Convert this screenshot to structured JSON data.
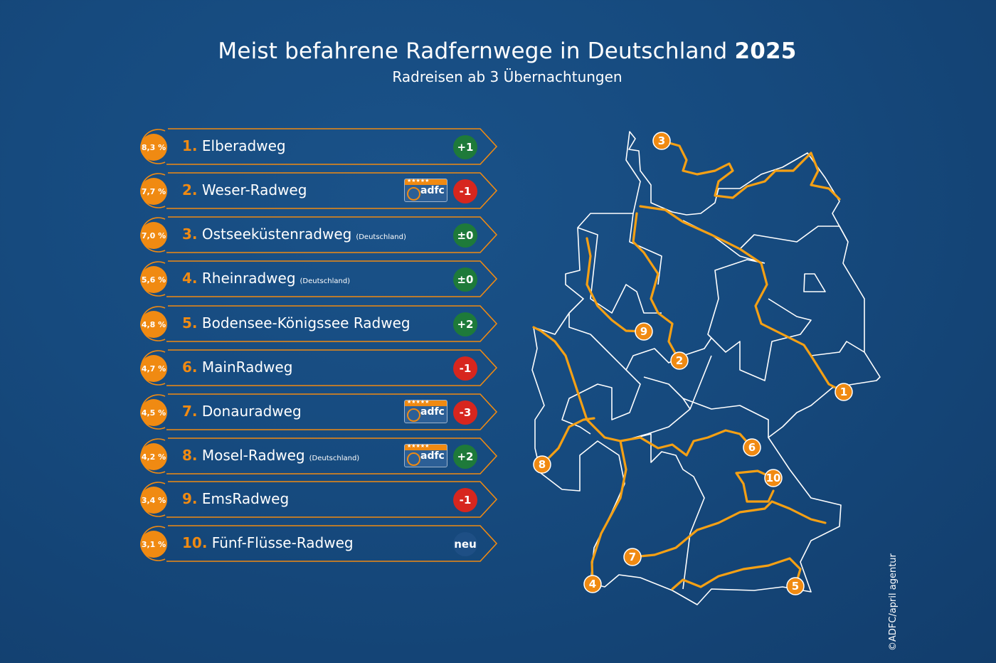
{
  "header": {
    "title": "Meist befahrene Radfernwege in Deutschland",
    "year": "2025",
    "subtitle": "Radreisen ab 3 Übernachtungen"
  },
  "colors": {
    "accent": "#f08a12",
    "up": "#1e7a3a",
    "down": "#d7261e",
    "new": "#1e4f85",
    "background": "#164a7e"
  },
  "rows": [
    {
      "rank": "1.",
      "name": "Elberadweg",
      "note": "",
      "share": "8,3 %",
      "change": "+1",
      "trend": "up",
      "adfc": false
    },
    {
      "rank": "2.",
      "name": "Weser-Radweg",
      "note": "",
      "share": "7,7 %",
      "change": "-1",
      "trend": "down",
      "adfc": true
    },
    {
      "rank": "3.",
      "name": "Ostseeküstenradweg",
      "note": "(Deutschland)",
      "share": "7,0 %",
      "change": "±0",
      "trend": "up",
      "adfc": false
    },
    {
      "rank": "4.",
      "name": "Rheinradweg",
      "note": "(Deutschland)",
      "share": "5,6 %",
      "change": "±0",
      "trend": "up",
      "adfc": false
    },
    {
      "rank": "5.",
      "name": "Bodensee-Königssee Radweg",
      "note": "",
      "share": "4,8 %",
      "change": "+2",
      "trend": "up",
      "adfc": false
    },
    {
      "rank": "6.",
      "name": "MainRadweg",
      "note": "",
      "share": "4,7 %",
      "change": "-1",
      "trend": "down",
      "adfc": false
    },
    {
      "rank": "7.",
      "name": "Donauradweg",
      "note": "",
      "share": "4,5 %",
      "change": "-3",
      "trend": "down",
      "adfc": true
    },
    {
      "rank": "8.",
      "name": "Mosel-Radweg",
      "note": "(Deutschland)",
      "share": "4,2 %",
      "change": "+2",
      "trend": "up",
      "adfc": true
    },
    {
      "rank": "9.",
      "name": "EmsRadweg",
      "note": "",
      "share": "3,4 %",
      "change": "-1",
      "trend": "down",
      "adfc": false
    },
    {
      "rank": "10.",
      "name": "Fünf-Flüsse-Radweg",
      "note": "",
      "share": "3,1 %",
      "change": "neu",
      "trend": "new",
      "adfc": false
    }
  ],
  "adfc_badge": {
    "label": "adfc",
    "stars": "★★★★★"
  },
  "map": {
    "markers": [
      "1",
      "2",
      "3",
      "4",
      "5",
      "6",
      "7",
      "8",
      "9",
      "10"
    ]
  },
  "copyright": "©ADFC/april agentur"
}
